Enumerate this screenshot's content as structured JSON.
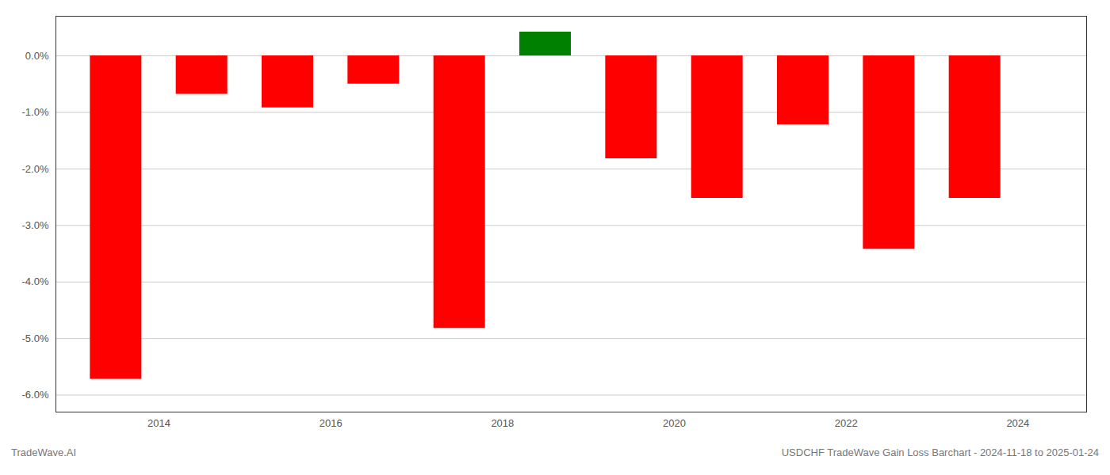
{
  "chart_data": {
    "type": "bar",
    "x": [
      2013.5,
      2014.5,
      2015.5,
      2016.5,
      2017.5,
      2018.5,
      2019.5,
      2020.5,
      2021.5,
      2022.5,
      2023.5
    ],
    "values": [
      -5.72,
      -0.68,
      -0.92,
      -0.5,
      -4.82,
      0.42,
      -1.82,
      -2.52,
      -1.22,
      -3.42,
      -2.52
    ],
    "colors": [
      "#ff0000",
      "#ff0000",
      "#ff0000",
      "#ff0000",
      "#ff0000",
      "#008000",
      "#ff0000",
      "#ff0000",
      "#ff0000",
      "#ff0000",
      "#ff0000"
    ],
    "xlim": [
      2012.8,
      2024.8
    ],
    "xticks": [
      2014,
      2016,
      2018,
      2020,
      2022,
      2024
    ],
    "ylim": [
      -6.3,
      0.7
    ],
    "yticks": [
      {
        "value": -6,
        "label": "-6.0%"
      },
      {
        "value": -5,
        "label": "-5.0%"
      },
      {
        "value": -4,
        "label": "-4.0%"
      },
      {
        "value": -3,
        "label": "-3.0%"
      },
      {
        "value": -2,
        "label": "-2.0%"
      },
      {
        "value": -1,
        "label": "-1.0%"
      },
      {
        "value": 0,
        "label": "0.0%"
      }
    ],
    "grid": true,
    "annotations": [
      "TradeWave.AI",
      "USDCHF TradeWave Gain Loss Barchart - 2024-11-18 to 2025-01-24"
    ]
  }
}
